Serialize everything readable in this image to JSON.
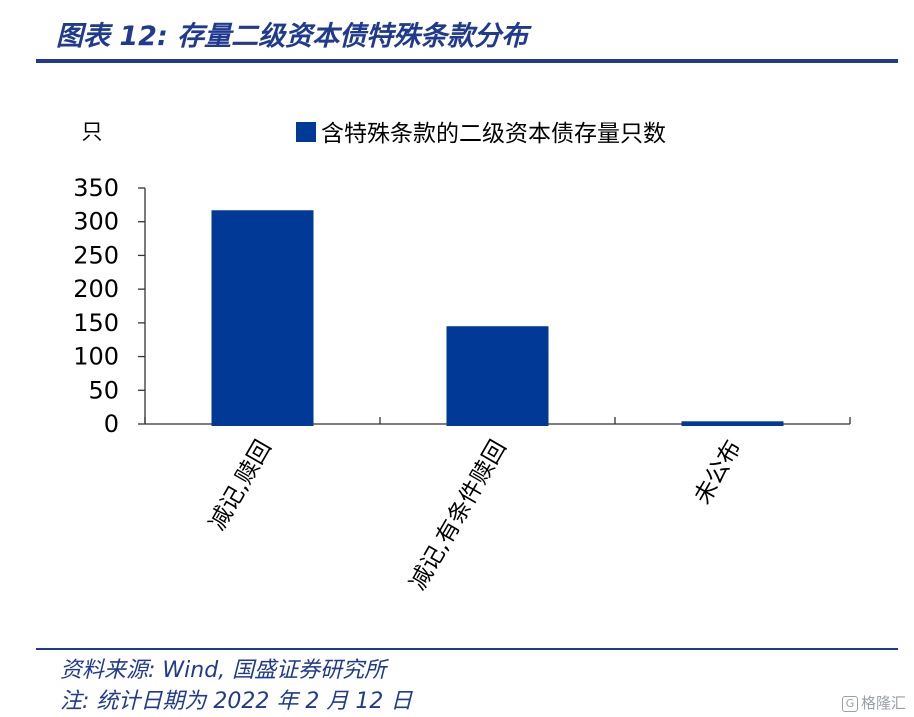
{
  "figure": {
    "title": "图表 12:  存量二级资本债特殊条款分布",
    "source": "资料来源:  Wind,  国盛证券研究所",
    "note": "注:  统计日期为 2022 年 2 月 12 日",
    "accent_color": "#1f3a8f"
  },
  "chart_data": {
    "type": "bar",
    "categories": [
      "减记,赎回",
      "减记,有条件赎回",
      "未公布"
    ],
    "series": [
      {
        "name": "含特殊条款的二级资本债存量只数",
        "values": [
          317,
          145,
          4
        ],
        "color": "#003a96"
      }
    ],
    "ylabel": "只",
    "ylim": [
      0,
      350
    ],
    "yticks": [
      0,
      50,
      100,
      150,
      200,
      250,
      300,
      350
    ],
    "legend": "top",
    "grid": false
  },
  "watermark": {
    "icon": "g-logo-icon",
    "text": "格隆汇"
  }
}
